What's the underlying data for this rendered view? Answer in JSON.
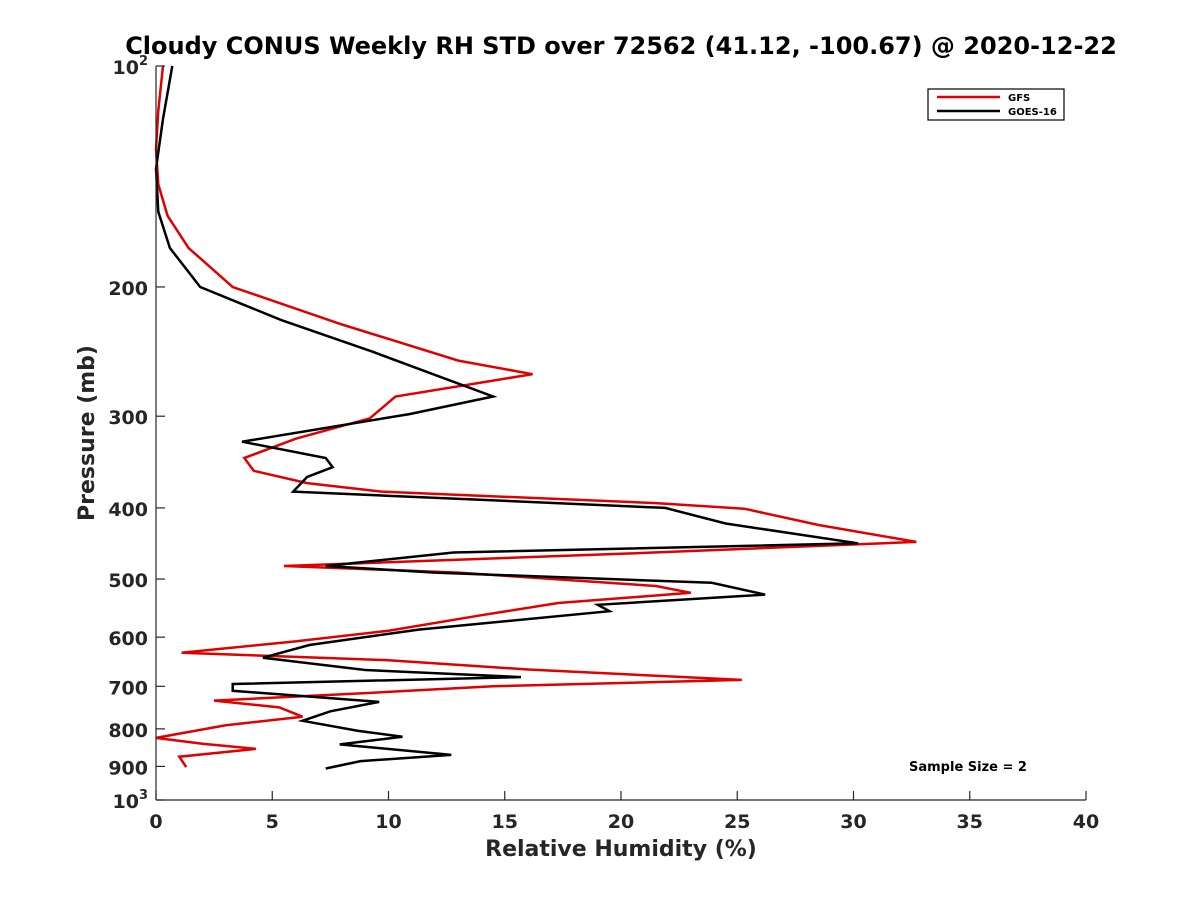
{
  "chart_data": {
    "type": "line",
    "title": "Cloudy CONUS Weekly RH STD over 72562 (41.12, -100.67) @ 2020-12-22",
    "xlabel": "Relative Humidity (%)",
    "ylabel": "Pressure (mb)",
    "xlim": [
      0,
      40
    ],
    "ylim": [
      100,
      1000
    ],
    "y_scale": "log",
    "y_reversed": true,
    "grid": false,
    "legend_position": "top-right",
    "x_ticks": [
      {
        "value": 0,
        "label": "0"
      },
      {
        "value": 5,
        "label": "5"
      },
      {
        "value": 10,
        "label": "10"
      },
      {
        "value": 15,
        "label": "15"
      },
      {
        "value": 20,
        "label": "20"
      },
      {
        "value": 25,
        "label": "25"
      },
      {
        "value": 30,
        "label": "30"
      },
      {
        "value": 35,
        "label": "35"
      },
      {
        "value": 40,
        "label": "40"
      }
    ],
    "y_ticks": [
      {
        "value": 100,
        "label": "10",
        "exp": "2"
      },
      {
        "value": 200,
        "label": "200",
        "exp": ""
      },
      {
        "value": 300,
        "label": "300",
        "exp": ""
      },
      {
        "value": 400,
        "label": "400",
        "exp": ""
      },
      {
        "value": 500,
        "label": "500",
        "exp": ""
      },
      {
        "value": 600,
        "label": "600",
        "exp": ""
      },
      {
        "value": 700,
        "label": "700",
        "exp": ""
      },
      {
        "value": 800,
        "label": "800",
        "exp": ""
      },
      {
        "value": 900,
        "label": "900",
        "exp": ""
      },
      {
        "value": 1000,
        "label": "10",
        "exp": "3"
      }
    ],
    "annotation": "Sample Size = 2",
    "series": [
      {
        "name": "GFS",
        "color": "#e00000",
        "points": [
          [
            0.3,
            100
          ],
          [
            0.1,
            115
          ],
          [
            0.0,
            130
          ],
          [
            0.1,
            145
          ],
          [
            0.5,
            160
          ],
          [
            1.4,
            177
          ],
          [
            3.3,
            200
          ],
          [
            8.0,
            225
          ],
          [
            13.0,
            252
          ],
          [
            16.2,
            263
          ],
          [
            10.3,
            282
          ],
          [
            9.2,
            302
          ],
          [
            6.0,
            322
          ],
          [
            3.8,
            342
          ],
          [
            4.2,
            356
          ],
          [
            6.5,
            370
          ],
          [
            9.7,
            380
          ],
          [
            21.5,
            394
          ],
          [
            25.3,
            401
          ],
          [
            28.5,
            422
          ],
          [
            32.7,
            445
          ],
          [
            20.0,
            462
          ],
          [
            5.5,
            480
          ],
          [
            13.0,
            490
          ],
          [
            21.5,
            511
          ],
          [
            23.0,
            522
          ],
          [
            17.3,
            539
          ],
          [
            14.0,
            560
          ],
          [
            10.0,
            588
          ],
          [
            6.0,
            608
          ],
          [
            1.1,
            630
          ],
          [
            10.0,
            645
          ],
          [
            16.0,
            664
          ],
          [
            25.2,
            686
          ],
          [
            14.5,
            700
          ],
          [
            9.0,
            715
          ],
          [
            2.5,
            732
          ],
          [
            5.3,
            748
          ],
          [
            6.3,
            770
          ],
          [
            3.0,
            791
          ],
          [
            0.0,
            823
          ],
          [
            2.0,
            838
          ],
          [
            4.3,
            852
          ],
          [
            1.0,
            873
          ],
          [
            1.3,
            902
          ]
        ]
      },
      {
        "name": "GOES-16",
        "color": "#000000",
        "points": [
          [
            0.7,
            100
          ],
          [
            0.3,
            118
          ],
          [
            0.0,
            138
          ],
          [
            0.1,
            158
          ],
          [
            0.6,
            177
          ],
          [
            1.9,
            200
          ],
          [
            5.4,
            222
          ],
          [
            9.3,
            245
          ],
          [
            14.5,
            282
          ],
          [
            10.9,
            298
          ],
          [
            3.7,
            325
          ],
          [
            7.3,
            342
          ],
          [
            7.6,
            352
          ],
          [
            6.5,
            363
          ],
          [
            5.9,
            380
          ],
          [
            21.9,
            400
          ],
          [
            24.5,
            420
          ],
          [
            30.2,
            447
          ],
          [
            12.8,
            460
          ],
          [
            7.3,
            480
          ],
          [
            12.0,
            490
          ],
          [
            23.9,
            506
          ],
          [
            26.2,
            525
          ],
          [
            19.0,
            542
          ],
          [
            19.5,
            553
          ],
          [
            11.3,
            586
          ],
          [
            6.6,
            615
          ],
          [
            4.6,
            640
          ],
          [
            9.0,
            665
          ],
          [
            15.7,
            680
          ],
          [
            3.3,
            695
          ],
          [
            3.3,
            710
          ],
          [
            9.6,
            735
          ],
          [
            7.5,
            757
          ],
          [
            6.3,
            780
          ],
          [
            8.7,
            805
          ],
          [
            10.6,
            820
          ],
          [
            7.9,
            840
          ],
          [
            12.7,
            868
          ],
          [
            8.8,
            885
          ],
          [
            7.3,
            906
          ]
        ]
      }
    ]
  }
}
